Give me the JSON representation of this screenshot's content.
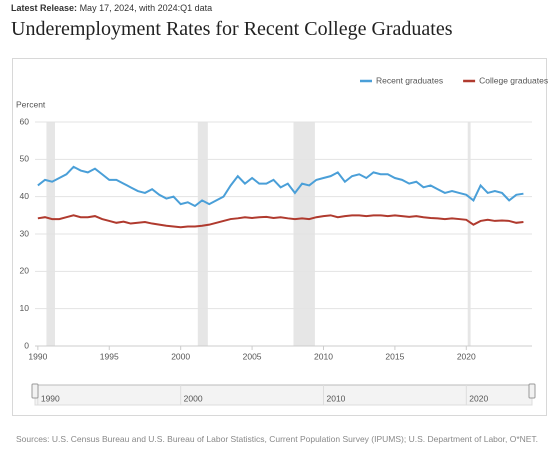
{
  "chart_data": {
    "type": "line",
    "release_label": "Latest Release:",
    "release_text": "May 17, 2024, with 2024:Q1 data",
    "title": "Underemployment Rates for Recent College Graduates",
    "y_label": "Percent",
    "source": "Sources: U.S. Census Bureau and U.S. Bureau of Labor Statistics, Current Population Survey (IPUMS); U.S. Department of Labor, O*NET.",
    "x": [
      1990,
      1990.5,
      1991,
      1991.5,
      1992,
      1992.5,
      1993,
      1993.5,
      1994,
      1994.5,
      1995,
      1995.5,
      1996,
      1996.5,
      1997,
      1997.5,
      1998,
      1998.5,
      1999,
      1999.5,
      2000,
      2000.5,
      2001,
      2001.5,
      2002,
      2002.5,
      2003,
      2003.5,
      2004,
      2004.5,
      2005,
      2005.5,
      2006,
      2006.5,
      2007,
      2007.5,
      2008,
      2008.5,
      2009,
      2009.5,
      2010,
      2010.5,
      2011,
      2011.5,
      2012,
      2012.5,
      2013,
      2013.5,
      2014,
      2014.5,
      2015,
      2015.5,
      2016,
      2016.5,
      2017,
      2017.5,
      2018,
      2018.5,
      2019,
      2019.5,
      2020,
      2020.5,
      2021,
      2021.5,
      2022,
      2022.5,
      2023,
      2023.5,
      2024
    ],
    "series": [
      {
        "name": "Recent graduates",
        "color": "#4a9fd8",
        "values": [
          43,
          44.5,
          44,
          45,
          46,
          48,
          47,
          46.5,
          47.5,
          46,
          44.5,
          44.5,
          43.5,
          42.5,
          41.5,
          41,
          42,
          40.5,
          39.5,
          40,
          38,
          38.5,
          37.5,
          39,
          38,
          39,
          40,
          43,
          45.5,
          43.5,
          45,
          43.5,
          43.5,
          44.5,
          42.5,
          43.5,
          41,
          43.5,
          43,
          44.5,
          45,
          45.5,
          46.5,
          44,
          45.5,
          46,
          45,
          46.5,
          46,
          46,
          45,
          44.5,
          43.5,
          44,
          42.5,
          43,
          42,
          41,
          41.5,
          41,
          40.5,
          39,
          43,
          41,
          41.5,
          41,
          39,
          40.5,
          40.8
        ]
      },
      {
        "name": "College graduates",
        "color": "#b03a2e",
        "values": [
          34.2,
          34.5,
          34,
          34,
          34.5,
          35,
          34.5,
          34.5,
          34.8,
          34,
          33.5,
          33,
          33.3,
          32.8,
          33,
          33.2,
          32.8,
          32.5,
          32.2,
          32,
          31.8,
          32,
          32,
          32.2,
          32.5,
          33,
          33.5,
          34,
          34.2,
          34.5,
          34.3,
          34.5,
          34.6,
          34.3,
          34.5,
          34.2,
          34,
          34.2,
          34,
          34.5,
          34.8,
          35,
          34.5,
          34.8,
          35,
          35,
          34.8,
          35,
          35,
          34.8,
          35,
          34.8,
          34.6,
          34.8,
          34.5,
          34.3,
          34.2,
          34,
          34.2,
          34,
          33.8,
          32.5,
          33.5,
          33.8,
          33.5,
          33.6,
          33.5,
          33,
          33.2
        ]
      }
    ],
    "recessions": [
      [
        1990.6,
        1991.2
      ],
      [
        2001.2,
        2001.9
      ],
      [
        2007.9,
        2009.4
      ],
      [
        2020.1,
        2020.3
      ]
    ],
    "xlim": [
      1989.8,
      2024.6
    ],
    "xticks": [
      1990,
      1995,
      2000,
      2005,
      2010,
      2015,
      2020
    ],
    "ylim": [
      0,
      60
    ],
    "yticks": [
      0,
      10,
      20,
      30,
      40,
      50,
      60
    ],
    "navigator_ticks": [
      1990,
      2000,
      2010,
      2020
    ],
    "grid": true,
    "legend": "top-right"
  }
}
